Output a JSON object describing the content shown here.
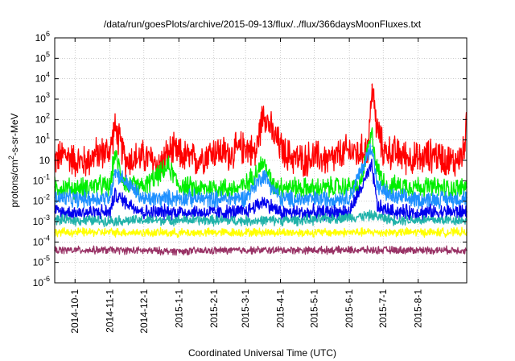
{
  "chart_data": {
    "type": "line",
    "title": "/data/run/goesPlots/archive/2015-09-13/flux/../flux/366daysMoonFluxes.txt",
    "xlabel": "Coordinated Universal Time (UTC)",
    "ylabel": "protons/cm²-s-sr-MeV",
    "ylim": [
      1e-06,
      1000000.0
    ],
    "y_scale": "log",
    "xlim": [
      "2014-09-13",
      "2015-09-13"
    ],
    "x_ticks": [
      "2014-10-1",
      "2014-11-1",
      "2014-12-1",
      "2015-1-1",
      "2015-2-1",
      "2015-3-1",
      "2015-4-1",
      "2015-5-1",
      "2015-6-1",
      "2015-7-1",
      "2015-8-1"
    ],
    "y_ticks": [
      {
        "exp": "-6",
        "value": 1e-06
      },
      {
        "exp": "-5",
        "value": 1e-05
      },
      {
        "exp": "-4",
        "value": 0.0001
      },
      {
        "exp": "-3",
        "value": 0.001
      },
      {
        "exp": "-2",
        "value": 0.01
      },
      {
        "exp": "-1",
        "value": 0.1
      },
      {
        "exp": "",
        "value": 1
      },
      {
        "exp": "1",
        "value": 10
      },
      {
        "exp": "2",
        "value": 100
      },
      {
        "exp": "3",
        "value": 1000
      },
      {
        "exp": "4",
        "value": 10000
      },
      {
        "exp": "5",
        "value": 100000
      },
      {
        "exp": "6",
        "value": 1000000
      }
    ],
    "grid": true,
    "series": [
      {
        "color": "#ff0000",
        "x": [
          "2014-09-13",
          "2014-09-22",
          "2014-10-01",
          "2014-10-10",
          "2014-10-20",
          "2014-11-01",
          "2014-11-05",
          "2014-11-15",
          "2014-12-01",
          "2014-12-15",
          "2014-12-25",
          "2015-01-01",
          "2015-01-15",
          "2015-02-01",
          "2015-02-15",
          "2015-03-01",
          "2015-03-10",
          "2015-03-17",
          "2015-03-25",
          "2015-04-05",
          "2015-04-20",
          "2015-05-01",
          "2015-05-15",
          "2015-06-01",
          "2015-06-10",
          "2015-06-18",
          "2015-06-21",
          "2015-06-25",
          "2015-07-01",
          "2015-07-15",
          "2015-08-01",
          "2015-08-15",
          "2015-09-01",
          "2015-09-10",
          "2015-09-13"
        ],
        "y": [
          1,
          2,
          1,
          0.8,
          2,
          3,
          40,
          1,
          1.5,
          0.6,
          3,
          2,
          1,
          3,
          2,
          5,
          2,
          300,
          20,
          2,
          1,
          1.5,
          1,
          3,
          2,
          5,
          5000,
          50,
          3,
          2,
          1,
          2,
          0.8,
          2,
          100
        ]
      },
      {
        "color": "#00ee00",
        "x": [
          "2014-09-13",
          "2014-10-01",
          "2014-10-20",
          "2014-11-01",
          "2014-11-05",
          "2014-11-15",
          "2014-12-01",
          "2014-12-23",
          "2015-01-01",
          "2015-01-20",
          "2015-02-01",
          "2015-02-20",
          "2015-03-01",
          "2015-03-17",
          "2015-03-25",
          "2015-04-10",
          "2015-05-01",
          "2015-05-20",
          "2015-06-10",
          "2015-06-21",
          "2015-06-26",
          "2015-07-05",
          "2015-07-20",
          "2015-08-10",
          "2015-09-01",
          "2015-09-13"
        ],
        "y": [
          0.05,
          0.04,
          0.06,
          0.05,
          2,
          0.06,
          0.05,
          0.5,
          0.06,
          0.04,
          0.05,
          0.04,
          0.06,
          0.8,
          0.06,
          0.05,
          0.04,
          0.05,
          0.05,
          20,
          0.3,
          0.05,
          0.06,
          0.05,
          0.04,
          0.05
        ]
      },
      {
        "color": "#1e90ff",
        "x": [
          "2014-09-13",
          "2014-10-01",
          "2014-11-01",
          "2014-11-05",
          "2014-12-01",
          "2015-01-01",
          "2015-02-01",
          "2015-03-01",
          "2015-03-17",
          "2015-04-01",
          "2015-05-01",
          "2015-06-01",
          "2015-06-21",
          "2015-06-26",
          "2015-07-10",
          "2015-08-01",
          "2015-09-01",
          "2015-09-13"
        ],
        "y": [
          0.015,
          0.012,
          0.015,
          0.3,
          0.012,
          0.015,
          0.012,
          0.015,
          0.2,
          0.013,
          0.012,
          0.015,
          5,
          0.05,
          0.015,
          0.012,
          0.013,
          0.015
        ]
      },
      {
        "color": "#0000ee",
        "x": [
          "2014-09-13",
          "2014-10-01",
          "2014-11-01",
          "2014-11-05",
          "2014-12-01",
          "2015-01-01",
          "2015-02-01",
          "2015-03-01",
          "2015-03-17",
          "2015-04-01",
          "2015-05-01",
          "2015-06-01",
          "2015-06-21",
          "2015-06-26",
          "2015-07-10",
          "2015-08-01",
          "2015-09-01",
          "2015-09-13"
        ],
        "y": [
          0.003,
          0.0028,
          0.003,
          0.02,
          0.0028,
          0.003,
          0.0027,
          0.003,
          0.01,
          0.0028,
          0.0027,
          0.003,
          0.5,
          0.005,
          0.003,
          0.0028,
          0.003,
          0.003
        ]
      },
      {
        "color": "#20b2aa",
        "x": [
          "2014-09-13",
          "2014-11-01",
          "2015-01-01",
          "2015-03-01",
          "2015-05-01",
          "2015-06-21",
          "2015-07-10",
          "2015-09-13"
        ],
        "y": [
          0.0012,
          0.0011,
          0.0012,
          0.0011,
          0.0012,
          0.002,
          0.0012,
          0.0012
        ]
      },
      {
        "color": "#ffff00",
        "x": [
          "2014-09-13",
          "2014-11-01",
          "2015-01-01",
          "2015-03-01",
          "2015-05-01",
          "2015-07-01",
          "2015-09-13"
        ],
        "y": [
          0.0003,
          0.0003,
          0.00028,
          0.0003,
          0.00029,
          0.0003,
          0.0003
        ]
      },
      {
        "color": "#993366",
        "x": [
          "2014-09-13",
          "2014-11-01",
          "2015-01-01",
          "2015-03-01",
          "2015-05-01",
          "2015-07-01",
          "2015-09-13"
        ],
        "y": [
          4e-05,
          4e-05,
          3.5e-05,
          4e-05,
          4e-05,
          4e-05,
          4e-05
        ]
      }
    ]
  }
}
